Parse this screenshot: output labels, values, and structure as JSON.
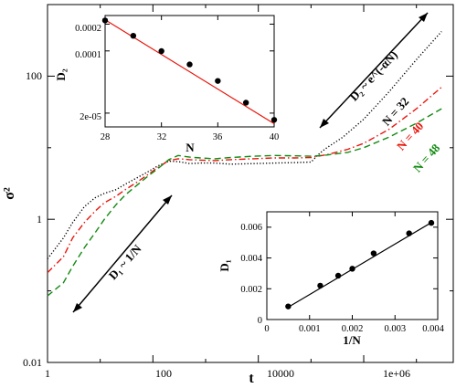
{
  "chart_data": [
    {
      "type": "line",
      "scale": "log-log",
      "xlabel": "t",
      "ylabel": "σ²",
      "xlim": [
        1,
        50000000
      ],
      "ylim": [
        0.01,
        1000
      ],
      "x_tick_labels": [
        "1",
        "100",
        "10000",
        "1e+06"
      ],
      "y_tick_labels": [
        "0.01",
        "1",
        "100"
      ],
      "colors": {
        "N = 32": "#000000",
        "N = 40": "#e8160c",
        "N = 48": "#138a13"
      },
      "series": [
        {
          "name": "N = 32",
          "style": "dotted",
          "x": [
            1,
            2,
            3,
            5,
            8,
            12,
            20,
            30,
            50,
            80,
            120,
            200,
            300,
            500,
            800,
            1500,
            3000,
            8000,
            20000,
            50000,
            100000,
            150000,
            200000,
            400000,
            1000000,
            3000000,
            10000000,
            30000000
          ],
          "y": [
            0.28,
            0.55,
            0.9,
            1.5,
            2.0,
            2.3,
            2.6,
            3.1,
            3.8,
            4.6,
            5.5,
            6.5,
            6.4,
            6.0,
            6.1,
            6.1,
            5.9,
            6.0,
            6.1,
            6.2,
            6.3,
            8.5,
            10,
            14,
            25,
            60,
            170,
            420
          ]
        },
        {
          "name": "N = 40",
          "style": "dash-dot",
          "x": [
            1,
            2,
            3,
            5,
            8,
            12,
            20,
            30,
            50,
            80,
            120,
            200,
            300,
            500,
            800,
            1500,
            3000,
            8000,
            20000,
            50000,
            100000,
            200000,
            500000,
            1000000,
            3000000,
            10000000,
            30000000
          ],
          "y": [
            0.18,
            0.3,
            0.55,
            0.9,
            1.3,
            1.7,
            2.1,
            2.6,
            3.3,
            4.2,
            5.2,
            6.6,
            7.0,
            6.8,
            6.7,
            6.6,
            6.8,
            7.0,
            7.2,
            7.2,
            7.3,
            8.0,
            9.5,
            11.5,
            18,
            35,
            70
          ]
        },
        {
          "name": "N = 48",
          "style": "dashed",
          "x": [
            1,
            2,
            3,
            5,
            8,
            12,
            20,
            30,
            50,
            80,
            120,
            200,
            300,
            500,
            800,
            1500,
            3000,
            8000,
            20000,
            50000,
            100000,
            200000,
            500000,
            1000000,
            3000000,
            10000000,
            30000000
          ],
          "y": [
            0.085,
            0.13,
            0.22,
            0.4,
            0.65,
            1.0,
            1.6,
            2.2,
            3.0,
            4.0,
            5.0,
            6.8,
            7.8,
            7.4,
            7.2,
            7.0,
            7.3,
            7.6,
            7.8,
            7.7,
            7.6,
            7.9,
            8.6,
            10,
            14,
            22,
            35
          ]
        }
      ],
      "annotations": [
        {
          "text": "D₁ ~ 1/N",
          "color": "#000000"
        },
        {
          "text": "D₂ ~ e^(-αN)",
          "color": "#000000"
        },
        {
          "text": "N = 32",
          "color": "#000000"
        },
        {
          "text": "N = 40",
          "color": "#e8160c"
        },
        {
          "text": "N = 48",
          "color": "#138a13"
        }
      ]
    },
    {
      "type": "scatter",
      "inset": "top-left",
      "xlabel": "N",
      "ylabel": "D₂",
      "scale": "log-y",
      "xlim": [
        28,
        40
      ],
      "ylim": [
        1.4e-05,
        0.00025
      ],
      "x_tick_labels": [
        "28",
        "32",
        "36",
        "40"
      ],
      "y_tick_labels": [
        "2e-05",
        "0.0001",
        "0.0002"
      ],
      "points": {
        "x": [
          28,
          30,
          32,
          34,
          36,
          38,
          40
        ],
        "y": [
          0.00022,
          0.000148,
          9.95e-05,
          7.05e-05,
          4.6e-05,
          2.62e-05,
          1.68e-05
        ]
      },
      "fit_line": {
        "color": "#e8160c",
        "x": [
          28,
          40
        ],
        "y": [
          0.000224,
          1.52e-05
        ]
      }
    },
    {
      "type": "scatter",
      "inset": "bottom-right",
      "xlabel": "1/N",
      "ylabel": "D₁",
      "xlim": [
        0,
        0.004
      ],
      "ylim": [
        0,
        0.007
      ],
      "x_tick_labels": [
        "0",
        "0.001",
        "0.002",
        "0.003",
        "0.004"
      ],
      "y_tick_labels": [
        "0",
        "0.002",
        "0.004",
        "0.006"
      ],
      "points": {
        "x": [
          0.0005,
          0.00125,
          0.00167,
          0.002,
          0.0025,
          0.00333,
          0.00385
        ],
        "y": [
          0.00085,
          0.0022,
          0.00285,
          0.0033,
          0.0043,
          0.0056,
          0.00628
        ]
      },
      "fit_line": {
        "color": "#000000",
        "x": [
          0.0005,
          0.00385
        ],
        "y": [
          0.0008,
          0.0063
        ]
      }
    }
  ]
}
